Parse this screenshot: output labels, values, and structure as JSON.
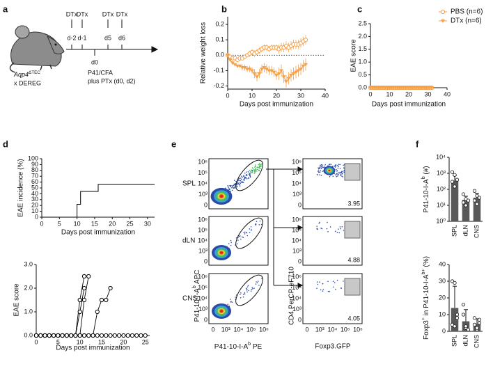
{
  "panel_labels": [
    "a",
    "b",
    "c",
    "d",
    "e",
    "f"
  ],
  "schema": {
    "dtx": [
      "DTx",
      "DTx",
      "DTx",
      "DTx"
    ],
    "days": [
      "d-2",
      "d-1",
      "d5",
      "d6"
    ],
    "d0": "d0",
    "immunization": "P41/CFA",
    "ptx": "plus PTx (d0, d2)",
    "strain": [
      {
        "text": "Aqp4",
        "italic": true
      },
      {
        "text": "ΔTEC",
        "sup": true
      }
    ],
    "cross": "x DEREG"
  },
  "chart_data": [
    {
      "type": "line",
      "ylabel": "Relative weight loss",
      "xlabel": "Days post immunization",
      "x": [
        0,
        1,
        2,
        3,
        4,
        5,
        6,
        7,
        8,
        9,
        10,
        11,
        12,
        13,
        14,
        15,
        16,
        17,
        18,
        19,
        20,
        21,
        22,
        23,
        24,
        25,
        26,
        27,
        28,
        29,
        30,
        31,
        32
      ],
      "series": [
        {
          "color": "#f5a04a",
          "marker": "circle-open",
          "values": [
            0,
            -0.01,
            -0.02,
            -0.02,
            -0.03,
            -0.02,
            -0.02,
            -0.01,
            0,
            0.01,
            0.02,
            0.01,
            0.02,
            0.03,
            0.04,
            0.05,
            0.05,
            0.04,
            0.05,
            0.05,
            0.05,
            0.04,
            0.05,
            0.05,
            0.06,
            0.05,
            0.06,
            0.07,
            0.07,
            0.07,
            0.08,
            0.09,
            0.1
          ],
          "errors": [
            0.01,
            0.01,
            0.01,
            0.01,
            0.01,
            0.01,
            0.01,
            0.01,
            0.01,
            0.02,
            0.02,
            0.02,
            0.02,
            0.02,
            0.02,
            0.02,
            0.02,
            0.02,
            0.02,
            0.02,
            0.02,
            0.03,
            0.03,
            0.03,
            0.03,
            0.03,
            0.03,
            0.03,
            0.03,
            0.03,
            0.03,
            0.03,
            0.03
          ]
        },
        {
          "color": "#f5a04a",
          "marker": "triangle-filled",
          "values": [
            0,
            -0.03,
            -0.05,
            -0.06,
            -0.07,
            -0.07,
            -0.08,
            -0.08,
            -0.09,
            -0.09,
            -0.1,
            -0.12,
            -0.14,
            -0.12,
            -0.09,
            -0.08,
            -0.09,
            -0.1,
            -0.1,
            -0.11,
            -0.13,
            -0.12,
            -0.1,
            -0.14,
            -0.17,
            -0.15,
            -0.13,
            -0.12,
            -0.11,
            -0.1,
            -0.09,
            -0.07,
            -0.06
          ],
          "errors": [
            0.01,
            0.01,
            0.01,
            0.01,
            0.01,
            0.01,
            0.02,
            0.02,
            0.02,
            0.02,
            0.02,
            0.03,
            0.03,
            0.03,
            0.03,
            0.03,
            0.03,
            0.03,
            0.03,
            0.03,
            0.03,
            0.04,
            0.04,
            0.04,
            0.04,
            0.04,
            0.04,
            0.04,
            0.04,
            0.04,
            0.04,
            0.04,
            0.04
          ]
        }
      ],
      "xlim": [
        0,
        40
      ],
      "xticks": [
        0,
        10,
        20,
        30,
        40
      ],
      "ylim": [
        -0.22,
        0.25
      ],
      "yticks": [
        -0.2,
        -0.1,
        {
          "value": 0,
          "label": "0.0"
        },
        0.1,
        0.2
      ],
      "reference_line": 0
    },
    {
      "type": "line",
      "ylabel": "EAE score",
      "xlabel": "Days post immunization",
      "x": [
        0,
        1,
        2,
        3,
        4,
        5,
        6,
        7,
        8,
        9,
        10,
        11,
        12,
        13,
        14,
        15,
        16,
        17,
        18,
        19,
        20,
        21,
        22,
        23,
        24,
        25,
        26,
        27,
        28,
        29,
        30,
        31,
        32
      ],
      "series": [
        {
          "name": "PBS (n=6)",
          "color": "#f5a04a",
          "marker": "circle-open",
          "values": [
            0,
            0,
            0,
            0,
            0,
            0,
            0,
            0,
            0,
            0,
            0,
            0,
            0,
            0,
            0,
            0,
            0,
            0,
            0,
            0,
            0,
            0,
            0,
            0,
            0,
            0,
            0,
            0,
            0,
            0,
            0,
            0,
            0
          ]
        },
        {
          "name": "DTx (n=6)",
          "color": "#f5a04a",
          "marker": "triangle-filled",
          "values": [
            0,
            0,
            0,
            0,
            0,
            0,
            0,
            0,
            0,
            0,
            0,
            0,
            0,
            0,
            0,
            0,
            0,
            0,
            0,
            0,
            0,
            0,
            0,
            0,
            0,
            0,
            0,
            0,
            0,
            0,
            0,
            0,
            0
          ]
        }
      ],
      "xlim": [
        0,
        40
      ],
      "xticks": [
        0,
        10,
        20,
        30,
        40
      ],
      "ylim": [
        0,
        2.5
      ],
      "yticks": [
        {
          "value": 0,
          "label": "0.0"
        },
        0.5,
        {
          "value": 1,
          "label": "1.0"
        },
        1.5,
        {
          "value": 2,
          "label": "2.0"
        },
        2.5
      ],
      "legend": "top-right"
    },
    {
      "type": "line",
      "step": true,
      "ylabel": "EAE incidence (%)",
      "xlabel": "Days post immunization",
      "x": [
        0,
        10,
        11,
        16,
        32
      ],
      "series": [
        {
          "color": "#000000",
          "values": [
            0,
            22,
            44,
            56,
            56
          ]
        }
      ],
      "xlim": [
        0,
        32
      ],
      "xticks": [
        0,
        5,
        10,
        15,
        20,
        25,
        30
      ],
      "ylim": [
        0,
        100
      ],
      "yticks": [
        0,
        10,
        20,
        30,
        40,
        50,
        60,
        70,
        80,
        90,
        100
      ]
    },
    {
      "type": "line",
      "ylabel": "EAE score",
      "xlabel": "Days post immunization",
      "x": [
        0,
        1,
        2,
        3,
        4,
        5,
        6,
        7,
        8,
        9,
        10,
        11,
        12,
        13,
        14,
        15,
        16,
        17,
        18,
        19,
        20,
        21,
        22,
        23,
        24,
        25
      ],
      "series": [
        {
          "color": "#000000",
          "marker": "circle-open",
          "values": [
            0,
            0,
            0,
            0,
            0,
            0,
            0,
            0,
            0,
            0,
            0,
            0,
            0,
            0,
            0,
            0,
            0,
            0,
            0,
            0,
            0,
            0,
            0,
            0,
            0,
            0
          ]
        },
        {
          "color": "#000000",
          "marker": "circle-open",
          "values": [
            0,
            0,
            0,
            0,
            0,
            0,
            0,
            0,
            0,
            0,
            1.5,
            2.5,
            null,
            null,
            null,
            null,
            null,
            null,
            null,
            null,
            null,
            null,
            null,
            null,
            null,
            null
          ]
        },
        {
          "color": "#000000",
          "marker": "circle-open",
          "values": [
            0,
            0,
            0,
            0,
            0,
            0,
            0,
            0,
            0,
            0,
            0,
            1.5,
            2.5,
            null,
            null,
            null,
            null,
            null,
            null,
            null,
            null,
            null,
            null,
            null,
            null,
            null
          ]
        },
        {
          "color": "#000000",
          "marker": "circle-open",
          "values": [
            0,
            0,
            0,
            0,
            0,
            0,
            0,
            0,
            0,
            0,
            1,
            2,
            null,
            null,
            null,
            null,
            null,
            null,
            null,
            null,
            null,
            null,
            null,
            null,
            null,
            null
          ]
        },
        {
          "color": "#000000",
          "marker": "circle-open",
          "values": [
            0,
            0,
            0,
            0,
            0,
            0,
            0,
            0,
            0,
            0,
            0,
            0,
            0,
            0,
            1,
            1.5,
            1.5,
            2,
            null,
            null,
            null,
            null,
            null,
            null,
            null,
            null
          ]
        }
      ],
      "xlim": [
        0,
        26
      ],
      "xticks": [
        0,
        5,
        10,
        15,
        20,
        25
      ],
      "ylim": [
        0,
        3
      ],
      "yticks": [
        {
          "value": 0,
          "label": "0.0"
        },
        {
          "value": 1,
          "label": "1.0"
        },
        {
          "value": 2,
          "label": "2.0"
        },
        {
          "value": 3,
          "label": "3.0"
        }
      ]
    },
    {
      "type": "bar",
      "log_scale": true,
      "color": "#595959",
      "ylabel": [
        {
          "text": "P41-10-I-A"
        },
        {
          "text": "b",
          "sup": true
        },
        {
          "text": " (#)"
        }
      ],
      "categories": [
        "SPL",
        "dLN",
        "CNS"
      ],
      "values": [
        350,
        22,
        30
      ],
      "errors": [
        400,
        15,
        25
      ],
      "points": [
        [
          1200,
          800,
          400,
          300,
          150
        ],
        [
          50,
          25,
          20,
          15,
          10
        ],
        [
          80,
          40,
          30,
          20,
          12
        ]
      ],
      "ylim": [
        1,
        10000
      ],
      "yticks": [
        {
          "value": 1,
          "label": "10⁰"
        },
        {
          "value": 10,
          "label": "10¹"
        },
        {
          "value": 100,
          "label": "10²"
        },
        {
          "value": 1000,
          "label": "10³"
        },
        {
          "value": 10000,
          "label": "10⁴"
        }
      ]
    },
    {
      "type": "bar",
      "color": "#595959",
      "ylabel": [
        {
          "text": "Foxp3"
        },
        {
          "text": "+",
          "sup": true
        },
        {
          "text": " in P41-10-I-A"
        },
        {
          "text": "b+",
          "sup": true
        },
        {
          "text": " (%)"
        }
      ],
      "categories": [
        "SPL",
        "dLN",
        "CNS"
      ],
      "values": [
        14,
        6,
        4.5
      ],
      "errors": [
        13,
        7,
        3
      ],
      "points": [
        [
          30,
          29,
          10,
          4,
          3,
          8
        ],
        [
          16,
          2,
          1,
          10,
          3
        ],
        [
          8,
          1,
          7,
          4,
          2,
          5
        ]
      ],
      "ylim": [
        0,
        40
      ],
      "yticks": [
        0,
        10,
        20,
        30,
        40
      ]
    }
  ],
  "flow": {
    "rows": [
      "SPL",
      "dLN",
      "CNS"
    ],
    "left_ylabel": [
      {
        "text": "P41-10-I-A"
      },
      {
        "text": "b",
        "sup": true
      },
      {
        "text": " APC"
      }
    ],
    "left_xlabel": [
      {
        "text": "P41-10-I-A"
      },
      {
        "text": "b",
        "sup": true
      },
      {
        "text": " PE"
      }
    ],
    "right_ylabel": "CD4 PerCP-eF710",
    "right_xlabel": "Foxp3.GFP",
    "yticks": [
      "10⁶",
      "10⁵",
      "10⁴",
      "10³",
      "0"
    ],
    "xticks": [
      "0",
      "10³",
      "10⁴",
      "10⁵",
      "10⁶"
    ],
    "gates": [
      "3.95",
      "4.88",
      "4.05"
    ]
  }
}
